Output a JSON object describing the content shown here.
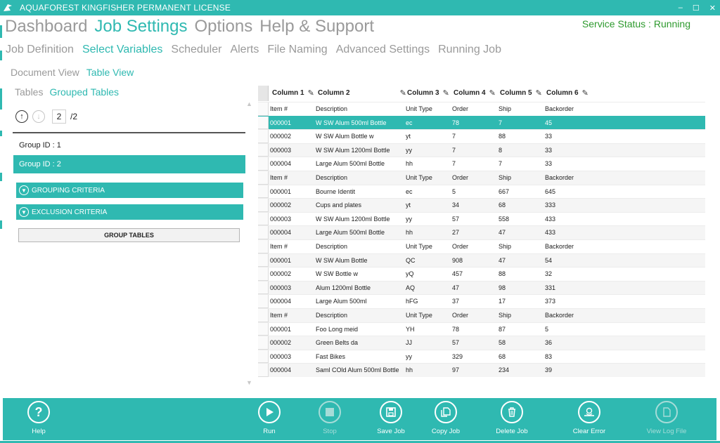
{
  "window": {
    "title": "AQUAFOREST KINGFISHER PERMANENT LICENSE",
    "minimize": "–",
    "maximize": "☐",
    "close": "✕"
  },
  "main_nav": [
    "Dashboard",
    "Job Settings",
    "Options",
    "Help & Support"
  ],
  "main_nav_active": "Job Settings",
  "service_status": "Service Status : Running",
  "sub_nav": [
    "Job Definition",
    "Select Variables",
    "Scheduler",
    "Alerts",
    "File Naming",
    "Advanced Settings",
    "Running Job"
  ],
  "view_nav": [
    "Document View",
    "Table View"
  ],
  "table_nav": [
    "Tables",
    "Grouped Tables"
  ],
  "pager": {
    "current": "2",
    "total": "/2"
  },
  "groups": [
    "Group ID : 1",
    "Group ID : 2"
  ],
  "criteria": [
    "GROUPING CRITERIA",
    "EXCLUSION CRITERIA"
  ],
  "group_tables_button": "GROUP TABLES",
  "grid": {
    "columns": [
      "Column 1",
      "Column 2",
      "Column 3",
      "Column 4",
      "Column 5",
      "Column 6"
    ],
    "rows": [
      [
        "Item #",
        "Description",
        "Unit Type",
        "Order",
        "Ship",
        "Backorder"
      ],
      [
        "000001",
        "W SW Alum 500ml Bottle",
        "ec",
        "78",
        "7",
        "45"
      ],
      [
        "000002",
        "W SW Alum Bottle w",
        "yt",
        "7",
        "88",
        "33"
      ],
      [
        "000003",
        "W SW Alum 1200ml Bottle",
        "yy",
        "7",
        "8",
        "33"
      ],
      [
        "000004",
        "Large Alum 500ml Bottle",
        "hh",
        "7",
        "7",
        "33"
      ],
      [
        "Item #",
        "Description",
        "Unit Type",
        "Order",
        "Ship",
        "Backorder"
      ],
      [
        "000001",
        "Bourne Identit",
        "ec",
        "5",
        "667",
        "645"
      ],
      [
        "000002",
        "Cups and plates",
        "yt",
        "34",
        "68",
        "333"
      ],
      [
        "000003",
        "W SW Alum 1200ml Bottle",
        "yy",
        "57",
        "558",
        "433"
      ],
      [
        "000004",
        "Large Alum 500ml Bottle",
        "hh",
        "27",
        "47",
        "433"
      ],
      [
        "Item #",
        "Description",
        "Unit Type",
        "Order",
        "Ship",
        "Backorder"
      ],
      [
        "000001",
        "W SW Alum Bottle",
        "QC",
        "908",
        "47",
        "54"
      ],
      [
        "000002",
        "W SW Bottle w",
        "yQ",
        "457",
        "88",
        "32"
      ],
      [
        "000003",
        "Alum 1200ml Bottle",
        "AQ",
        "47",
        "98",
        "331"
      ],
      [
        "000004",
        "Large Alum 500ml",
        "hFG",
        "37",
        "17",
        "373"
      ],
      [
        "Item #",
        "Description",
        "Unit Type",
        "Order",
        "Ship",
        "Backorder"
      ],
      [
        "000001",
        "Foo Long meid",
        "YH",
        "78",
        "87",
        "5"
      ],
      [
        "000002",
        "Green Belts da",
        "JJ",
        "57",
        "58",
        "36"
      ],
      [
        "000003",
        "Fast Bikes",
        "yy",
        "329",
        "68",
        "83"
      ],
      [
        "000004",
        "Saml COld Alum 500ml Bottle",
        "hh",
        "97",
        "234",
        "39"
      ]
    ]
  },
  "toolbar": [
    {
      "label": "Help",
      "icon": "help-icon",
      "enabled": true
    },
    {
      "label": "Run",
      "icon": "play-icon",
      "enabled": true
    },
    {
      "label": "Stop",
      "icon": "stop-icon",
      "enabled": false
    },
    {
      "label": "Save Job",
      "icon": "save-icon",
      "enabled": true
    },
    {
      "label": "Copy Job",
      "icon": "copy-icon",
      "enabled": true
    },
    {
      "label": "Delete Job",
      "icon": "trash-icon",
      "enabled": true
    },
    {
      "label": "Clear Error",
      "icon": "clear-error-icon",
      "enabled": true
    },
    {
      "label": "View Log File",
      "icon": "log-file-icon",
      "enabled": false
    }
  ],
  "colors": {
    "accent": "#2fb9b1",
    "status": "#2e9a2e",
    "muted": "#9a9a9a"
  }
}
